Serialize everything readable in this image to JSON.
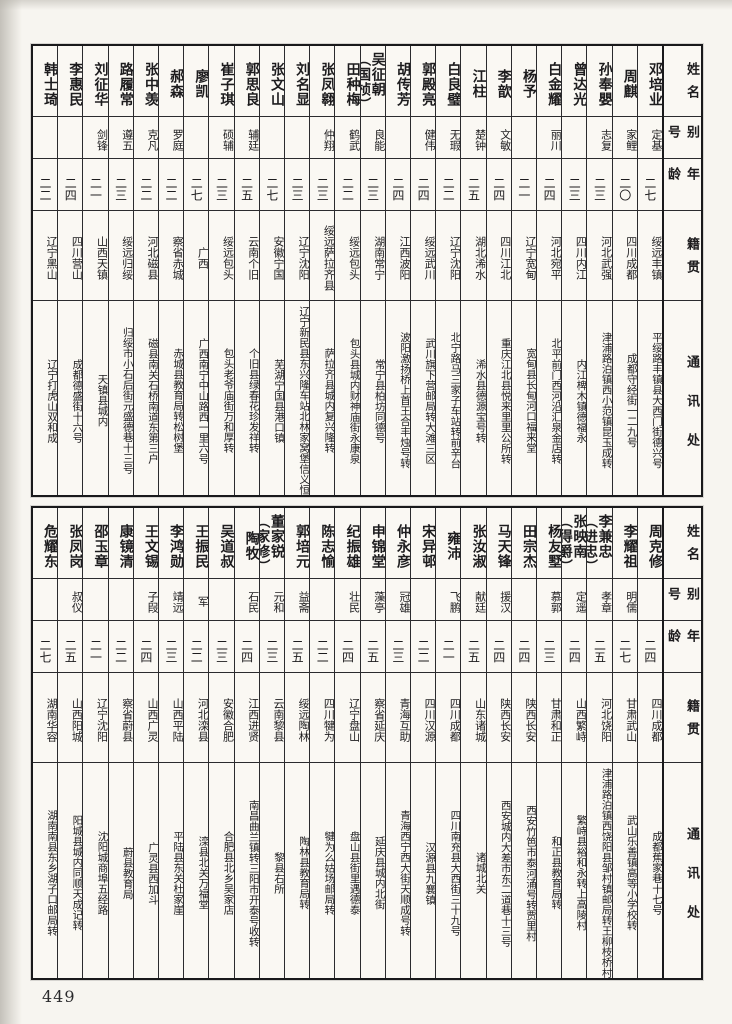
{
  "page_number": "449",
  "headers": {
    "name": "姓名",
    "alias": "别号",
    "age": "年龄",
    "native": "籍贯",
    "address": "通讯处"
  },
  "tables": [
    {
      "entries": [
        {
          "name": "邓培业",
          "alias": "定基",
          "age": "二七",
          "native": "绥远丰镇",
          "address": "平绥路丰镇县大西门街德兴号"
        },
        {
          "name": "周麒",
          "alias": "家鲤",
          "age": "二〇",
          "native": "四川成都",
          "address": "成都守经街一二九号"
        },
        {
          "name": "孙奉嬰",
          "alias": "志复",
          "age": "二三",
          "native": "河北武强",
          "address": "津浦路泊镇西小范镇昆玉成转"
        },
        {
          "name": "曾达光",
          "alias": "",
          "age": "二三",
          "native": "四川内江",
          "address": "内江椑木镇德福永"
        },
        {
          "name": "白金耀",
          "alias": "丽川",
          "age": "二四",
          "native": "河北宛平",
          "address": "北平前门西河沿汇泉金店转"
        },
        {
          "name": "杨予",
          "alias": "",
          "age": "二一",
          "native": "辽宁宽甸",
          "address": "宽甸县长甸河口福来堂"
        },
        {
          "name": "李歆",
          "alias": "文敏",
          "age": "二四",
          "native": "四川江北",
          "address": "重庆江北县悦来里里公所转"
        },
        {
          "name": "江柱",
          "alias": "楚钟",
          "age": "二五",
          "native": "湖北浠水",
          "address": "浠水县德源宝号转"
        },
        {
          "name": "白良璧",
          "alias": "无瑕",
          "age": "二二",
          "native": "辽宁沈阳",
          "address": "北宁路马三家子车站转前辛台"
        },
        {
          "name": "郭殿亮",
          "alias": "健伟",
          "age": "二四",
          "native": "绥远武川",
          "address": "武川旗下营邮局转大滩三区"
        },
        {
          "name": "胡传芳",
          "alias": "",
          "age": "二四",
          "native": "江西波阳",
          "address": "波阳激扬桥上首王合丰烛号转"
        },
        {
          "name": "吴征朝（国桢）",
          "alias": "良能",
          "age": "二三",
          "native": "湖南常宁",
          "address": "常宁县柏坊同德号"
        },
        {
          "name": "田种梅",
          "alias": "鹤武",
          "age": "二二",
          "native": "绥远包头",
          "address": "包头县城内财神庙街永康泉"
        },
        {
          "name": "张凤翱",
          "alias": "仲翔",
          "age": "二三",
          "native": "绥远萨拉齐县",
          "address": "萨拉齐县城内复兴隆转"
        },
        {
          "name": "刘名显",
          "alias": "",
          "age": "二三",
          "native": "辽宁沈阳",
          "address": "辽宁新民县东兴隆车站北林家窝堡信义恒"
        },
        {
          "name": "张文山",
          "alias": "",
          "age": "二七",
          "native": "安徽宁国",
          "address": "芜湖宁国县港口镇"
        },
        {
          "name": "郭思良",
          "alias": "辅廷",
          "age": "二五",
          "native": "云南个旧",
          "address": "个旧县绿春花珍发祥转"
        },
        {
          "name": "崔子琪",
          "alias": "硕辅",
          "age": "二三",
          "native": "绥远包头",
          "address": "包头老爷庙街万和厚转"
        },
        {
          "name": "廖凯",
          "alias": "",
          "age": "二七",
          "native": "广西",
          "address": "广西南宁中山路西一里六号"
        },
        {
          "name": "郝森",
          "alias": "罗庭",
          "age": "二二",
          "native": "察省赤城",
          "address": "赤城县教育局转松树堡"
        },
        {
          "name": "张中羡",
          "alias": "克凡",
          "age": "二二",
          "native": "河北磁县",
          "address": "磁县南关石桥南道东第三户"
        },
        {
          "name": "路履常",
          "alias": "遵五",
          "age": "二三",
          "native": "绥远归绥",
          "address": "归绥市小石后街元盛德巷十三号"
        },
        {
          "name": "刘征华",
          "alias": "剑锋",
          "age": "二一",
          "native": "山西天镇",
          "address": "天镇县城内"
        },
        {
          "name": "李惠民",
          "alias": "",
          "age": "二四",
          "native": "四川营山",
          "address": "成都德盛街十六号"
        },
        {
          "name": "韩士琦",
          "alias": "",
          "age": "二二",
          "native": "辽宁黑山",
          "address": "辽宁打虎山双和成"
        }
      ]
    },
    {
      "entries": [
        {
          "name": "周克修",
          "alias": "",
          "age": "二四",
          "native": "四川成都",
          "address": "成都蕉家巷十七号"
        },
        {
          "name": "李耀祖",
          "alias": "明儒",
          "age": "二七",
          "native": "甘肃武山",
          "address": "武山乐善镇高等小学校转"
        },
        {
          "name": "李兼忠（进忠）",
          "alias": "孝章",
          "age": "二五",
          "native": "河北饶阳",
          "address": "津浦路泊镇西饶阳县邹村镇邮局转王柳枝桥村"
        },
        {
          "name": "张映南（得爵）",
          "alias": "定遥",
          "age": "二四",
          "native": "山西繁峙",
          "address": "繁峙县裕和永转上高陵村"
        },
        {
          "name": "杨友墅",
          "alias": "慕郭",
          "age": "二三",
          "native": "甘肃和正",
          "address": "和正县教育局转"
        },
        {
          "name": "田宗杰",
          "alias": "",
          "age": "二四",
          "native": "陕西长安",
          "address": "西安竹笆市泰河涌号转贾里村"
        },
        {
          "name": "马天锋",
          "alias": "援汉",
          "age": "二四",
          "native": "陕西长安",
          "address": "西安城内大差市东二道巷十三号"
        },
        {
          "name": "张汝淑",
          "alias": "献廷",
          "age": "二五",
          "native": "山东诸城",
          "address": "诸城北关"
        },
        {
          "name": "雍沛",
          "alias": "飞鹏",
          "age": "二一",
          "native": "四川成都",
          "address": "四川南充县大西街三十九号"
        },
        {
          "name": "宋异邨",
          "alias": "",
          "age": "二二",
          "native": "四川汉源",
          "address": "汉源县九襄镇"
        },
        {
          "name": "仲永彦",
          "alias": "冠雄",
          "age": "二三",
          "native": "青海互助",
          "address": "青海西宁西大街天顺成号转"
        },
        {
          "name": "申锦堂",
          "alias": "藻亭",
          "age": "二五",
          "native": "察省延庆",
          "address": "延庆县城内北街"
        },
        {
          "name": "纪振雄",
          "alias": "壮民",
          "age": "二四",
          "native": "辽宁盘山",
          "address": "盘山县街里遇德泰"
        },
        {
          "name": "陈志愉",
          "alias": "",
          "age": "二二",
          "native": "四川犍为",
          "address": "犍为么姑场邮局转"
        },
        {
          "name": "郭培元",
          "alias": "益斋",
          "age": "二五",
          "native": "绥远陶林",
          "address": "陶林县教育局转"
        },
        {
          "name": "董家锐（家修）",
          "alias": "元和",
          "age": "二三",
          "native": "云南黎县",
          "address": "黎县右所"
        },
        {
          "name": "陶牧",
          "alias": "石民",
          "age": "二四",
          "native": "江西进贤",
          "address": "南昌曲兰镇转三阳市开泰号收转"
        },
        {
          "name": "吴道叔",
          "alias": "",
          "age": "二三",
          "native": "安徽合肥",
          "address": "合肥县北乡吴家店"
        },
        {
          "name": "王振民",
          "alias": "军",
          "age": "二二",
          "native": "河北滦县",
          "address": "滦县北关万福堂"
        },
        {
          "name": "李鸿勋",
          "alias": "靖远",
          "age": "二三",
          "native": "山西平陆",
          "address": "平陆县东关杜家崖"
        },
        {
          "name": "王文锡",
          "alias": "子叚",
          "age": "二四",
          "native": "山西广灵",
          "address": "广灵县西加斗"
        },
        {
          "name": "康镜清",
          "alias": "",
          "age": "二二",
          "native": "察省蔚县",
          "address": "蔚县教育局"
        },
        {
          "name": "邵玉章",
          "alias": "",
          "age": "二一",
          "native": "辽宁沈阳",
          "address": "沈阳城商埠五经路"
        },
        {
          "name": "张凤岗",
          "alias": "叔仪",
          "age": "二五",
          "native": "山西阳城",
          "address": "阳城县城内同顺天成记转"
        },
        {
          "name": "危耀东",
          "alias": "",
          "age": "二七",
          "native": "湖南华容",
          "address": "湖南南县东乡湖子口邮局转"
        }
      ]
    }
  ]
}
